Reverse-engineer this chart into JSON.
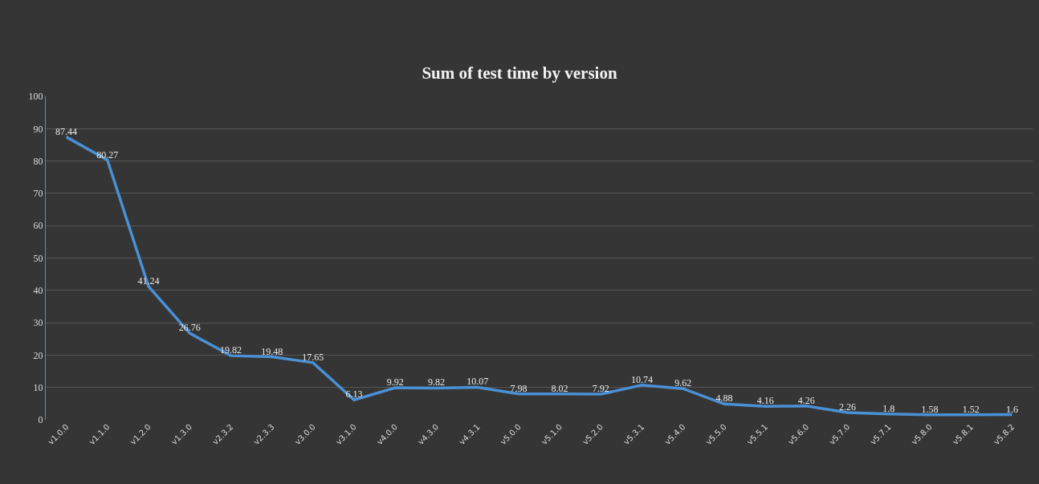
{
  "chart_data": {
    "type": "line",
    "title": "Sum of test time by version",
    "categories": [
      "v1.0.0",
      "v1.1.0",
      "v1.2.0",
      "v1.3.0",
      "v2.3.2",
      "v2.3.3",
      "v3.0.0",
      "v3.1.0",
      "v4.0.0",
      "v4.3.0",
      "v4.3.1",
      "v5.0.0",
      "v5.1.0",
      "v5.2.0",
      "v5.3.1",
      "v5.4.0",
      "v5.5.0",
      "v5.5.1",
      "v5.6.0",
      "v5.7.0",
      "v5.7.1",
      "v5.8.0",
      "v5.8.1",
      "v5.8.2"
    ],
    "series": [
      {
        "color": "#4a90d4",
        "values": [
          87.44,
          80.27,
          41.24,
          26.76,
          19.82,
          19.48,
          17.65,
          6.13,
          9.92,
          9.82,
          10.07,
          7.98,
          8.02,
          7.92,
          10.74,
          9.62,
          4.88,
          4.16,
          4.26,
          2.26,
          1.8,
          1.58,
          1.52,
          1.6
        ]
      }
    ],
    "ylim": [
      0,
      100
    ],
    "yticks": [
      0,
      10,
      20,
      30,
      40,
      50,
      60,
      70,
      80,
      90,
      100
    ],
    "grid": "y",
    "marker": "none",
    "line_style": "solid",
    "data_labels": true
  }
}
